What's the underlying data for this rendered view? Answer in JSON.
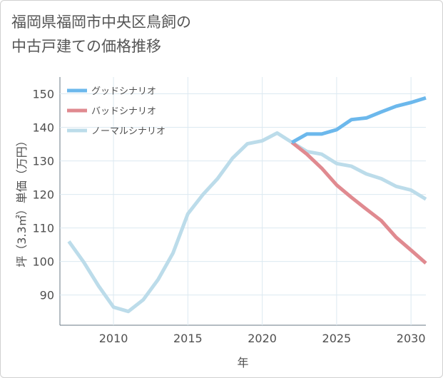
{
  "title_lines": [
    "福岡県福岡市中央区鳥飼の",
    "中古戸建ての価格推移"
  ],
  "chart_data": {
    "type": "line",
    "xlabel": "年",
    "ylabel": "坪（3.3㎡）単価（万円）",
    "xlim": [
      2006.4,
      2031
    ],
    "ylim": [
      81,
      155
    ],
    "xticks": [
      2010,
      2015,
      2020,
      2025,
      2030
    ],
    "yticks": [
      90,
      100,
      110,
      120,
      130,
      140,
      150
    ],
    "grid": true,
    "legend_position": "top-left",
    "series": [
      {
        "name": "グッドシナリオ",
        "color": "#6cb8ec",
        "x": [
          2022,
          2023,
          2024,
          2025,
          2026,
          2027,
          2028,
          2029,
          2030,
          2031
        ],
        "y": [
          135.5,
          138,
          138,
          139.3,
          142.3,
          142.8,
          144.6,
          146.3,
          147.4,
          148.8
        ]
      },
      {
        "name": "バッドシナリオ",
        "color": "#e08a90",
        "x": [
          2022,
          2023,
          2024,
          2025,
          2026,
          2027,
          2028,
          2029,
          2030,
          2031
        ],
        "y": [
          135.5,
          132,
          127.8,
          122.8,
          119.1,
          115.6,
          112.2,
          107.2,
          103.4,
          99.5
        ]
      },
      {
        "name": "ノーマルシナリオ",
        "color": "#bcdcea",
        "x": [
          2007,
          2008,
          2009,
          2010,
          2011,
          2012,
          2013,
          2014,
          2015,
          2016,
          2017,
          2018,
          2019,
          2020,
          2021,
          2022,
          2023,
          2024,
          2025,
          2026,
          2027,
          2028,
          2029,
          2030,
          2031
        ],
        "y": [
          106,
          99.8,
          92.7,
          86.4,
          85.1,
          88.6,
          94.6,
          102.5,
          114.2,
          119.9,
          124.7,
          130.8,
          135.1,
          136,
          138.3,
          135.5,
          132.8,
          132,
          129.2,
          128.4,
          126.1,
          124.7,
          122.4,
          121.3,
          118.6
        ]
      }
    ]
  }
}
